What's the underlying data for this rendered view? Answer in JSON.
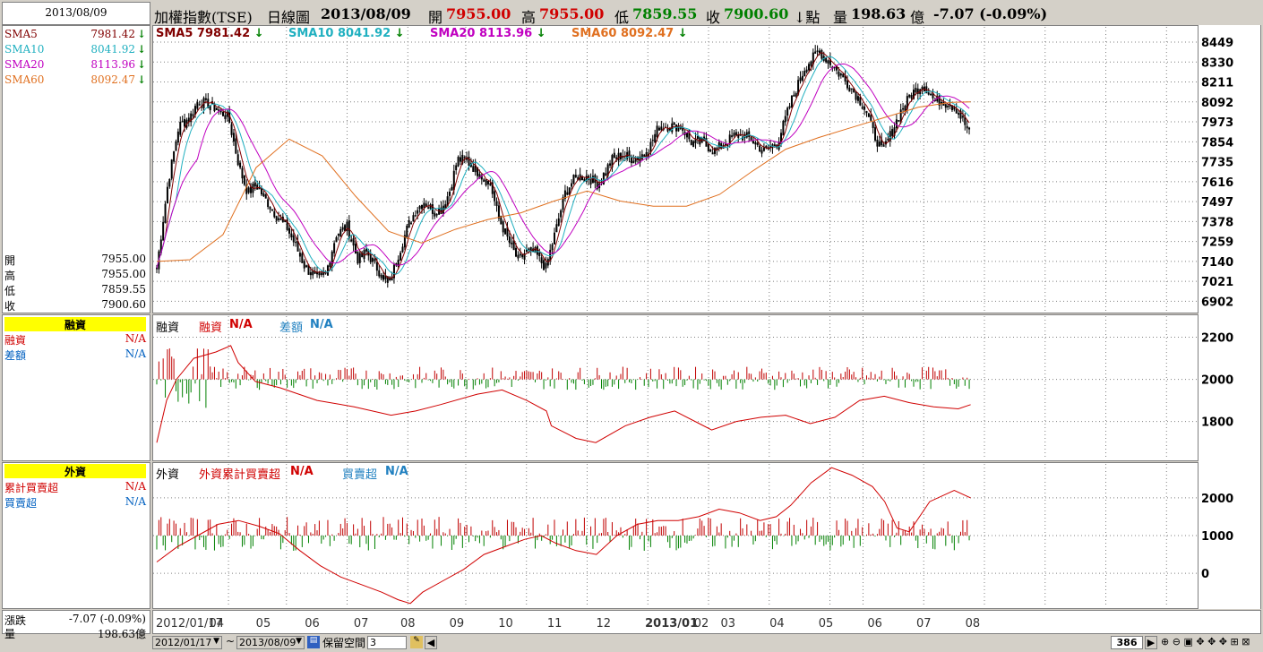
{
  "header": {
    "date_box": "2013/08/09",
    "title": "加權指數(TSE)",
    "period": "日線圖",
    "date": "2013/08/09",
    "open_label": "開",
    "open": "7955.00",
    "high_label": "高",
    "high": "7955.00",
    "low_label": "低",
    "low": "7859.55",
    "close_label": "收",
    "close": "7900.60",
    "close_arrow": "↓點",
    "vol_label": "量",
    "vol": "198.63",
    "vol_unit": "億",
    "change": "-7.07 (-0.09%)"
  },
  "sidebar": {
    "sma": [
      {
        "label": "SMA5",
        "value": "7981.42",
        "color": "#800000"
      },
      {
        "label": "SMA10",
        "value": "8041.92",
        "color": "#20b0c0"
      },
      {
        "label": "SMA20",
        "value": "8113.96",
        "color": "#c000c0"
      },
      {
        "label": "SMA60",
        "value": "8092.47",
        "color": "#e07020"
      }
    ],
    "ohlc": [
      {
        "label": "開",
        "value": "7955.00"
      },
      {
        "label": "高",
        "value": "7955.00"
      },
      {
        "label": "低",
        "value": "7859.55"
      },
      {
        "label": "收",
        "value": "7900.60"
      }
    ],
    "margin_title": "融資",
    "margin_rows": [
      {
        "label": "融資",
        "value": "N/A",
        "color": "#d00000"
      },
      {
        "label": "差額",
        "value": "N/A",
        "color": "#0060c0"
      }
    ],
    "foreign_title": "外資",
    "foreign_rows": [
      {
        "label": "累計買賣超",
        "value": "N/A",
        "color": "#d00000"
      },
      {
        "label": "買賣超",
        "value": "N/A",
        "color": "#0060c0"
      }
    ],
    "change_label": "漲跌",
    "change_value": "-7.07 (-0.09%)",
    "vol_label": "量",
    "vol_value": "198.63億"
  },
  "legend_main": [
    {
      "label": "SMA5 7981.42",
      "color": "#800000"
    },
    {
      "label": "SMA10 8041.92",
      "color": "#20b0c0"
    },
    {
      "label": "SMA20 8113.96",
      "color": "#c000c0"
    },
    {
      "label": "SMA60 8092.47",
      "color": "#e07020"
    }
  ],
  "legend_margin": {
    "title": "融資",
    "a_label": "融資",
    "a_val": "N/A",
    "b_label": "差額",
    "b_val": "N/A"
  },
  "legend_foreign": {
    "title": "外資",
    "a_label": "外資累計買賣超",
    "a_val": "N/A",
    "b_label": "買賣超",
    "b_val": "N/A"
  },
  "bottom": {
    "start_date": "2012/01/17",
    "tilde": "~",
    "end_date": "2013/08/09",
    "reserve_label": "保留空間",
    "reserve_value": "3",
    "count": "386"
  },
  "chart_data": [
    {
      "type": "candlestick",
      "title": "",
      "ylabel": "",
      "ylim": [
        6840,
        8540
      ],
      "yticks": [
        8449,
        8330,
        8211,
        8092,
        7973,
        7854,
        7735,
        7616,
        7497,
        7378,
        7259,
        7140,
        7021,
        6902
      ],
      "x_labels": [
        "2012/01/17",
        "04",
        "05",
        "06",
        "07",
        "08",
        "09",
        "10",
        "11",
        "12",
        "2013/01",
        "02",
        "03",
        "04",
        "05",
        "06",
        "07",
        "08"
      ],
      "x_label_positions_days": [
        0,
        52,
        94,
        138,
        182,
        224,
        268,
        312,
        356,
        400,
        444,
        488,
        512,
        556,
        600,
        644,
        688,
        732
      ],
      "close_path": [
        [
          0,
          7100
        ],
        [
          8,
          7600
        ],
        [
          16,
          7950
        ],
        [
          24,
          8000
        ],
        [
          30,
          8100
        ],
        [
          38,
          8080
        ],
        [
          44,
          8050
        ],
        [
          52,
          8000
        ],
        [
          60,
          7700
        ],
        [
          66,
          7550
        ],
        [
          72,
          7600
        ],
        [
          80,
          7500
        ],
        [
          88,
          7400
        ],
        [
          94,
          7350
        ],
        [
          100,
          7250
        ],
        [
          108,
          7100
        ],
        [
          116,
          7050
        ],
        [
          122,
          7050
        ],
        [
          130,
          7300
        ],
        [
          138,
          7350
        ],
        [
          146,
          7150
        ],
        [
          152,
          7200
        ],
        [
          160,
          7100
        ],
        [
          168,
          7000
        ],
        [
          176,
          7200
        ],
        [
          182,
          7350
        ],
        [
          188,
          7450
        ],
        [
          194,
          7500
        ],
        [
          200,
          7450
        ],
        [
          206,
          7450
        ],
        [
          212,
          7550
        ],
        [
          218,
          7750
        ],
        [
          224,
          7750
        ],
        [
          230,
          7700
        ],
        [
          236,
          7650
        ],
        [
          242,
          7600
        ],
        [
          248,
          7400
        ],
        [
          256,
          7250
        ],
        [
          262,
          7150
        ],
        [
          268,
          7200
        ],
        [
          274,
          7200
        ],
        [
          282,
          7100
        ],
        [
          290,
          7350
        ],
        [
          296,
          7550
        ],
        [
          304,
          7650
        ],
        [
          312,
          7650
        ],
        [
          320,
          7600
        ],
        [
          330,
          7750
        ],
        [
          338,
          7780
        ],
        [
          346,
          7750
        ],
        [
          356,
          7800
        ],
        [
          364,
          7950
        ],
        [
          372,
          7950
        ],
        [
          380,
          7950
        ],
        [
          388,
          7850
        ],
        [
          396,
          7850
        ],
        [
          404,
          7800
        ],
        [
          412,
          7850
        ],
        [
          420,
          7900
        ],
        [
          430,
          7880
        ],
        [
          440,
          7800
        ],
        [
          450,
          7850
        ],
        [
          460,
          8100
        ],
        [
          470,
          8300
        ],
        [
          480,
          8400
        ],
        [
          488,
          8330
        ],
        [
          496,
          8250
        ],
        [
          506,
          8150
        ],
        [
          514,
          8050
        ],
        [
          520,
          7900
        ],
        [
          526,
          7800
        ],
        [
          532,
          7900
        ],
        [
          540,
          8050
        ],
        [
          548,
          8150
        ],
        [
          556,
          8200
        ],
        [
          564,
          8100
        ],
        [
          572,
          8100
        ],
        [
          580,
          8050
        ],
        [
          590,
          7900
        ]
      ],
      "sma60_path": [
        [
          0,
          7140
        ],
        [
          24,
          7150
        ],
        [
          48,
          7300
        ],
        [
          72,
          7700
        ],
        [
          96,
          7870
        ],
        [
          120,
          7770
        ],
        [
          144,
          7530
        ],
        [
          168,
          7320
        ],
        [
          192,
          7250
        ],
        [
          216,
          7330
        ],
        [
          240,
          7390
        ],
        [
          264,
          7430
        ],
        [
          288,
          7500
        ],
        [
          312,
          7560
        ],
        [
          336,
          7500
        ],
        [
          360,
          7470
        ],
        [
          384,
          7470
        ],
        [
          408,
          7540
        ],
        [
          432,
          7680
        ],
        [
          456,
          7810
        ],
        [
          480,
          7880
        ],
        [
          504,
          7940
        ],
        [
          528,
          8000
        ],
        [
          552,
          8060
        ],
        [
          576,
          8090
        ],
        [
          590,
          8092
        ]
      ],
      "series": [
        {
          "name": "SMA5",
          "value": 7981.42
        },
        {
          "name": "SMA10",
          "value": 8041.92
        },
        {
          "name": "SMA20",
          "value": 8113.96
        },
        {
          "name": "SMA60",
          "value": 8092.47
        }
      ]
    },
    {
      "type": "bar+line",
      "title": "",
      "yticks": [
        2200,
        2000,
        1800
      ],
      "ylim": [
        1620,
        2300
      ],
      "series": [
        {
          "name": "融資",
          "values_path": [
            [
              0,
              1700
            ],
            [
              8,
              1900
            ],
            [
              16,
              2000
            ],
            [
              30,
              2100
            ],
            [
              48,
              2130
            ],
            [
              60,
              2160
            ],
            [
              66,
              2080
            ],
            [
              80,
              1990
            ],
            [
              100,
              1960
            ],
            [
              130,
              1900
            ],
            [
              160,
              1870
            ],
            [
              190,
              1830
            ],
            [
              210,
              1850
            ],
            [
              230,
              1880
            ],
            [
              260,
              1930
            ],
            [
              280,
              1950
            ],
            [
              300,
              1900
            ],
            [
              316,
              1850
            ],
            [
              320,
              1780
            ],
            [
              340,
              1720
            ],
            [
              356,
              1700
            ],
            [
              380,
              1780
            ],
            [
              400,
              1820
            ],
            [
              420,
              1850
            ],
            [
              440,
              1790
            ],
            [
              450,
              1760
            ],
            [
              470,
              1800
            ],
            [
              490,
              1820
            ],
            [
              510,
              1830
            ],
            [
              530,
              1790
            ],
            [
              550,
              1820
            ],
            [
              570,
              1900
            ],
            [
              590,
              1920
            ],
            [
              610,
              1890
            ],
            [
              630,
              1870
            ],
            [
              650,
              1860
            ],
            [
              660,
              1880
            ]
          ]
        }
      ]
    },
    {
      "type": "bar+line",
      "title": "",
      "yticks": [
        2000,
        1000,
        0
      ],
      "ylim": [
        -900,
        2900
      ],
      "series": [
        {
          "name": "外資累計買賣超",
          "values_path": [
            [
              0,
              300
            ],
            [
              20,
              700
            ],
            [
              40,
              1000
            ],
            [
              60,
              1300
            ],
            [
              80,
              1400
            ],
            [
              100,
              1250
            ],
            [
              120,
              1050
            ],
            [
              140,
              600
            ],
            [
              160,
              200
            ],
            [
              180,
              -100
            ],
            [
              200,
              -300
            ],
            [
              220,
              -500
            ],
            [
              236,
              -700
            ],
            [
              248,
              -800
            ],
            [
              260,
              -500
            ],
            [
              280,
              -200
            ],
            [
              300,
              100
            ],
            [
              320,
              500
            ],
            [
              340,
              700
            ],
            [
              360,
              900
            ],
            [
              376,
              1000
            ],
            [
              390,
              800
            ],
            [
              410,
              600
            ],
            [
              430,
              500
            ],
            [
              450,
              1000
            ],
            [
              470,
              1300
            ],
            [
              490,
              1400
            ],
            [
              510,
              1400
            ],
            [
              530,
              1500
            ],
            [
              550,
              1700
            ],
            [
              570,
              1600
            ],
            [
              590,
              1400
            ],
            [
              606,
              1500
            ],
            [
              620,
              1800
            ],
            [
              640,
              2400
            ],
            [
              660,
              2800
            ],
            [
              680,
              2600
            ],
            [
              700,
              2300
            ],
            [
              712,
              1900
            ],
            [
              724,
              1200
            ],
            [
              736,
              1100
            ],
            [
              756,
              1900
            ],
            [
              780,
              2200
            ],
            [
              796,
              2000
            ]
          ]
        }
      ]
    }
  ],
  "colors": {
    "up": "#c00000",
    "down": "#006000",
    "sma5": "#800000",
    "sma10": "#20b0c0",
    "sma20": "#c000c0",
    "sma60": "#e07020",
    "grid": "#808080"
  }
}
